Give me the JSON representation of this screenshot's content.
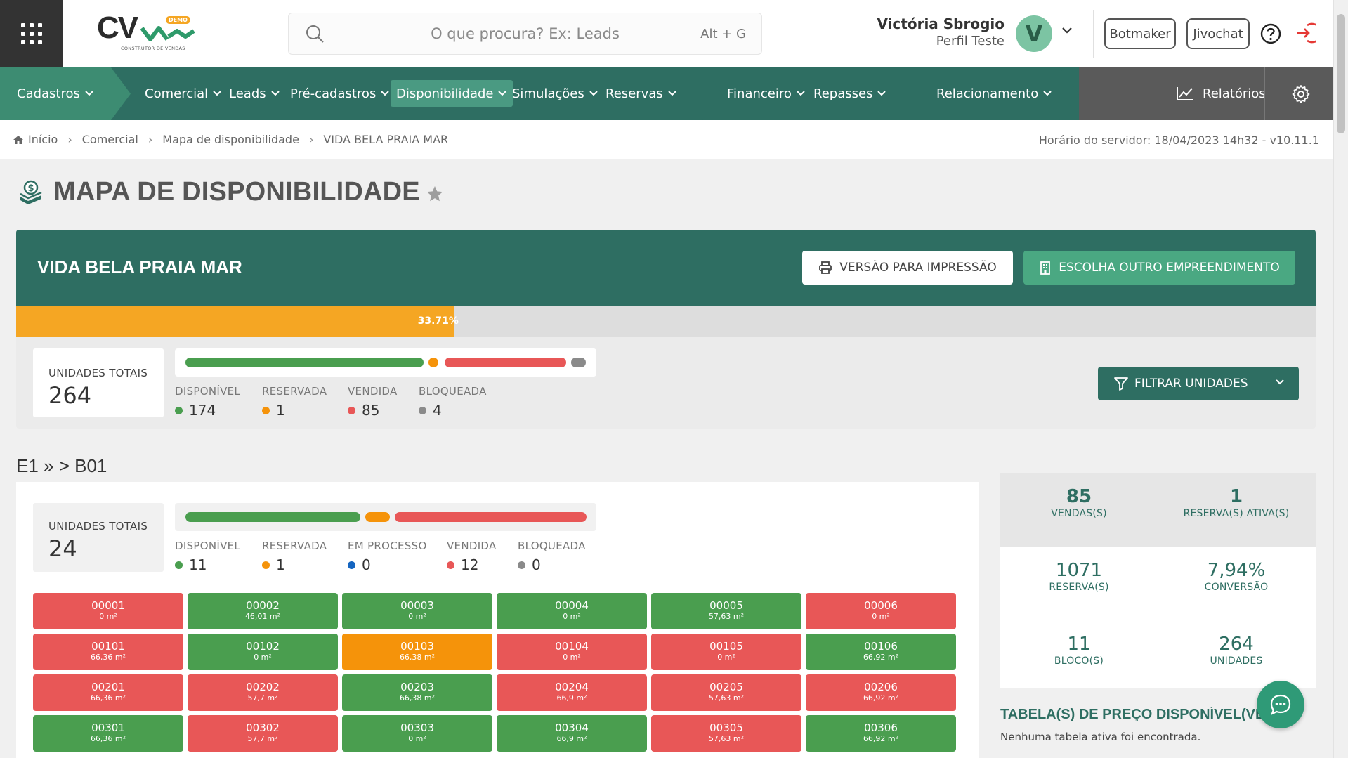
{
  "colors": {
    "primary": "#2e6e62",
    "available": "#4a9e4f",
    "reserved": "#f5930a",
    "sold": "#e85757",
    "blocked": "#8a8a8a",
    "in_process": "#1565c0",
    "progress": "#f5a623"
  },
  "header": {
    "logo_text": "CV",
    "logo_badge": "DEMO",
    "logo_sub": "CONSTRUTOR DE VENDAS",
    "search_placeholder": "O que procura? Ex: Leads",
    "search_shortcut": "Alt + G",
    "user_name": "Victória Sbrogio",
    "user_profile": "Perfil Teste",
    "avatar_letter": "V",
    "buttons": [
      "Botmaker",
      "Jivochat"
    ],
    "icons": [
      "apps-grid-icon",
      "search-icon",
      "chevron-down-icon",
      "help-icon",
      "logout-icon"
    ]
  },
  "nav": {
    "items": [
      {
        "label": "Cadastros"
      },
      {
        "label": "Comercial"
      },
      {
        "label": "Leads"
      },
      {
        "label": "Pré-cadastros"
      },
      {
        "label": "Disponibilidade",
        "active": true
      },
      {
        "label": "Simulações"
      },
      {
        "label": "Reservas"
      },
      {
        "label": "Financeiro"
      },
      {
        "label": "Repasses"
      },
      {
        "label": "Relacionamento"
      }
    ],
    "reports_label": "Relatórios"
  },
  "breadcrumb": {
    "items": [
      "Início",
      "Comercial",
      "Mapa de disponibilidade",
      "VIDA BELA PRAIA MAR"
    ],
    "server_time": "Horário do servidor: 18/04/2023 14h32 - v10.11.1"
  },
  "page": {
    "title": "MAPA DE DISPONIBILIDADE"
  },
  "project": {
    "name": "VIDA BELA PRAIA MAR",
    "print_button": "VERSÃO PARA IMPRESSÃO",
    "choose_button": "ESCOLHA OUTRO EMPREENDIMENTO",
    "progress_label": "33.71%",
    "progress_value": 0.3371,
    "total_label": "UNIDADES TOTAIS",
    "total": "264",
    "legend": [
      {
        "label": "DISPONÍVEL",
        "value": "174",
        "status": "available"
      },
      {
        "label": "RESERVADA",
        "value": "1",
        "status": "reserved"
      },
      {
        "label": "VENDIDA",
        "value": "85",
        "status": "sold"
      },
      {
        "label": "BLOQUEADA",
        "value": "4",
        "status": "blocked"
      }
    ],
    "filter_button": "FILTRAR UNIDADES"
  },
  "block": {
    "heading": "E1 » > B01",
    "total_label": "UNIDADES TOTAIS",
    "total": "24",
    "legend": [
      {
        "label": "DISPONÍVEL",
        "value": "11",
        "status": "available"
      },
      {
        "label": "RESERVADA",
        "value": "1",
        "status": "reserved"
      },
      {
        "label": "EM PROCESSO",
        "value": "0",
        "status": "in_process"
      },
      {
        "label": "VENDIDA",
        "value": "12",
        "status": "sold"
      },
      {
        "label": "BLOQUEADA",
        "value": "0",
        "status": "blocked"
      }
    ],
    "units": [
      {
        "code": "00001",
        "area": "0 m²",
        "status": "sold"
      },
      {
        "code": "00002",
        "area": "46,01 m²",
        "status": "available"
      },
      {
        "code": "00003",
        "area": "0 m²",
        "status": "available"
      },
      {
        "code": "00004",
        "area": "0 m²",
        "status": "available"
      },
      {
        "code": "00005",
        "area": "57,63 m²",
        "status": "available"
      },
      {
        "code": "00006",
        "area": "0 m²",
        "status": "sold"
      },
      {
        "code": "00101",
        "area": "66,36 m²",
        "status": "sold"
      },
      {
        "code": "00102",
        "area": "0 m²",
        "status": "available"
      },
      {
        "code": "00103",
        "area": "66,38 m²",
        "status": "reserved"
      },
      {
        "code": "00104",
        "area": "0 m²",
        "status": "sold"
      },
      {
        "code": "00105",
        "area": "0 m²",
        "status": "sold"
      },
      {
        "code": "00106",
        "area": "66,92 m²",
        "status": "available"
      },
      {
        "code": "00201",
        "area": "66,36 m²",
        "status": "sold"
      },
      {
        "code": "00202",
        "area": "57,7 m²",
        "status": "sold"
      },
      {
        "code": "00203",
        "area": "66,38 m²",
        "status": "available"
      },
      {
        "code": "00204",
        "area": "66,9 m²",
        "status": "sold"
      },
      {
        "code": "00205",
        "area": "57,63 m²",
        "status": "sold"
      },
      {
        "code": "00206",
        "area": "66,92 m²",
        "status": "sold"
      },
      {
        "code": "00301",
        "area": "66,36 m²",
        "status": "available"
      },
      {
        "code": "00302",
        "area": "57,7 m²",
        "status": "sold"
      },
      {
        "code": "00303",
        "area": "0 m²",
        "status": "available"
      },
      {
        "code": "00304",
        "area": "66,9 m²",
        "status": "available"
      },
      {
        "code": "00305",
        "area": "57,63 m²",
        "status": "sold"
      },
      {
        "code": "00306",
        "area": "66,92 m²",
        "status": "available"
      }
    ]
  },
  "stats": {
    "sales": {
      "value": "85",
      "label": "VENDAS(S)"
    },
    "active_reservations": {
      "value": "1",
      "label": "RESERVA(S) ATIVA(S)"
    },
    "reservations": {
      "value": "1071",
      "label": "RESERVA(S)"
    },
    "conversion": {
      "value": "7,94%",
      "label": "CONVERSÃO"
    },
    "blocks": {
      "value": "11",
      "label": "BLOCO(S)"
    },
    "units": {
      "value": "264",
      "label": "UNIDADES"
    }
  },
  "price_tables": {
    "title": "TABELA(S) DE PREÇO DISPONÍVEL(VEIS)",
    "message": "Nenhuma tabela ativa foi encontrada."
  }
}
